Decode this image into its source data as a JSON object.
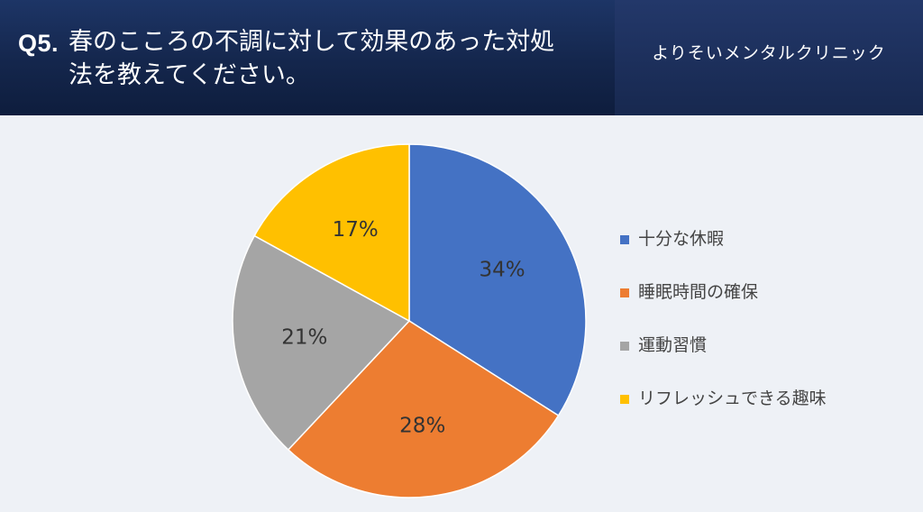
{
  "header": {
    "question_number": "Q5.",
    "question_text": "春のこころの不調に対して効果のあった対処法を教えてください。",
    "clinic_name": "よりそいメンタルクリニック"
  },
  "chart_data": {
    "type": "pie",
    "categories": [
      "十分な休暇",
      "睡眠時間の確保",
      "運動習慣",
      "リフレッシュできる趣味"
    ],
    "values": [
      34,
      28,
      21,
      17
    ],
    "labels": [
      "34%",
      "28%",
      "21%",
      "17%"
    ],
    "colors": [
      "#4472c4",
      "#ed7d31",
      "#a5a5a5",
      "#ffc000"
    ],
    "start_angle": "12 o'clock",
    "direction": "clockwise",
    "legend": "right",
    "legend_colors": [
      "#4472c4",
      "#ed7d31",
      "#a5a5a5",
      "#ffc000"
    ]
  }
}
